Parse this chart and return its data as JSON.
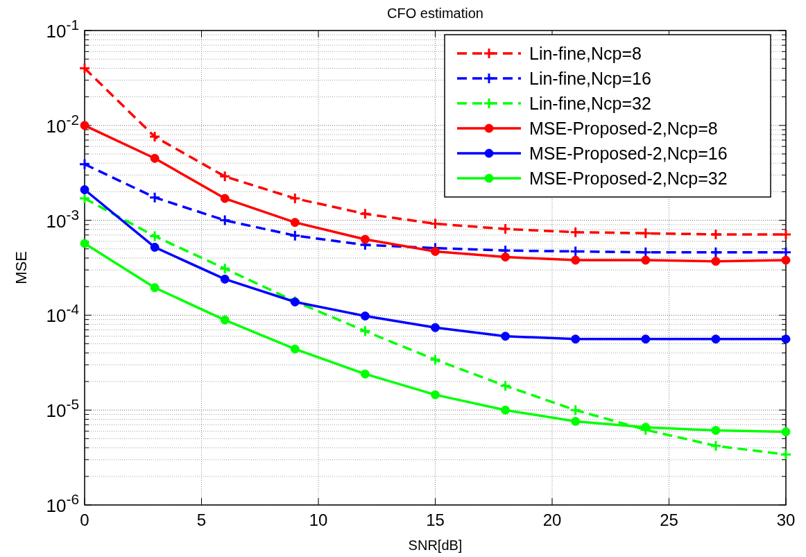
{
  "chart_data": {
    "type": "line",
    "title": "CFO estimation",
    "xlabel": "SNR[dB]",
    "ylabel": "MSE",
    "log": "y",
    "grid": true,
    "legend": "top right",
    "x": [
      0,
      3,
      6,
      9,
      12,
      15,
      18,
      21,
      24,
      27,
      30
    ],
    "xlim": [
      0,
      30
    ],
    "xticks": [
      0,
      5,
      10,
      15,
      20,
      25,
      30
    ],
    "ylim": [
      1e-06,
      0.1
    ],
    "yticks": [
      {
        "value": 1e-06,
        "label": "10$^{-6}$"
      },
      {
        "value": 1e-05,
        "label": "10$^{-5}$"
      },
      {
        "value": 0.0001,
        "label": "10$^{-4}$"
      },
      {
        "value": 0.001,
        "label": "10$^{-3}$"
      },
      {
        "value": 0.01,
        "label": "10$^{-2}$"
      },
      {
        "value": 0.1,
        "label": "10$^{-1}$"
      }
    ],
    "series": [
      {
        "name": "Lin-fine,Ncp=8",
        "color": "#ff0000",
        "marker": "cross",
        "line_style": "dashed",
        "values": [
          0.04,
          0.0076,
          0.0029,
          0.0017,
          0.00117,
          0.00092,
          0.00081,
          0.00075,
          0.00073,
          0.00071,
          0.00071
        ]
      },
      {
        "name": "Lin-fine,Ncp=16",
        "color": "#0000ff",
        "marker": "cross",
        "line_style": "dashed",
        "values": [
          0.0039,
          0.00174,
          0.001,
          0.00069,
          0.00055,
          0.00051,
          0.00048,
          0.00047,
          0.00046,
          0.00046,
          0.00046
        ]
      },
      {
        "name": "Lin-fine,Ncp=32",
        "color": "#00ff00",
        "marker": "cross",
        "line_style": "dashed",
        "values": [
          0.0017,
          0.00068,
          0.00031,
          0.00014,
          6.8e-05,
          3.4e-05,
          1.8e-05,
          1e-05,
          6.2e-06,
          4.2e-06,
          3.4e-06
        ]
      },
      {
        "name": "MSE-Proposed-2,Ncp=8",
        "color": "#ff0000",
        "marker": "circle",
        "line_style": "solid",
        "values": [
          0.01,
          0.0045,
          0.0017,
          0.00095,
          0.00063,
          0.00047,
          0.00041,
          0.00038,
          0.00038,
          0.00037,
          0.00038
        ]
      },
      {
        "name": "MSE-Proposed-2,Ncp=16",
        "color": "#0000ff",
        "marker": "circle",
        "line_style": "solid",
        "values": [
          0.0021,
          0.00052,
          0.00024,
          0.000138,
          9.8e-05,
          7.4e-05,
          6e-05,
          5.6e-05,
          5.6e-05,
          5.6e-05,
          5.6e-05
        ]
      },
      {
        "name": "MSE-Proposed-2,Ncp=32",
        "color": "#00ff00",
        "marker": "circle",
        "line_style": "solid",
        "values": [
          0.00057,
          0.000195,
          8.9e-05,
          4.4e-05,
          2.4e-05,
          1.45e-05,
          1e-05,
          7.6e-06,
          6.6e-06,
          6.1e-06,
          5.9e-06
        ]
      }
    ]
  }
}
